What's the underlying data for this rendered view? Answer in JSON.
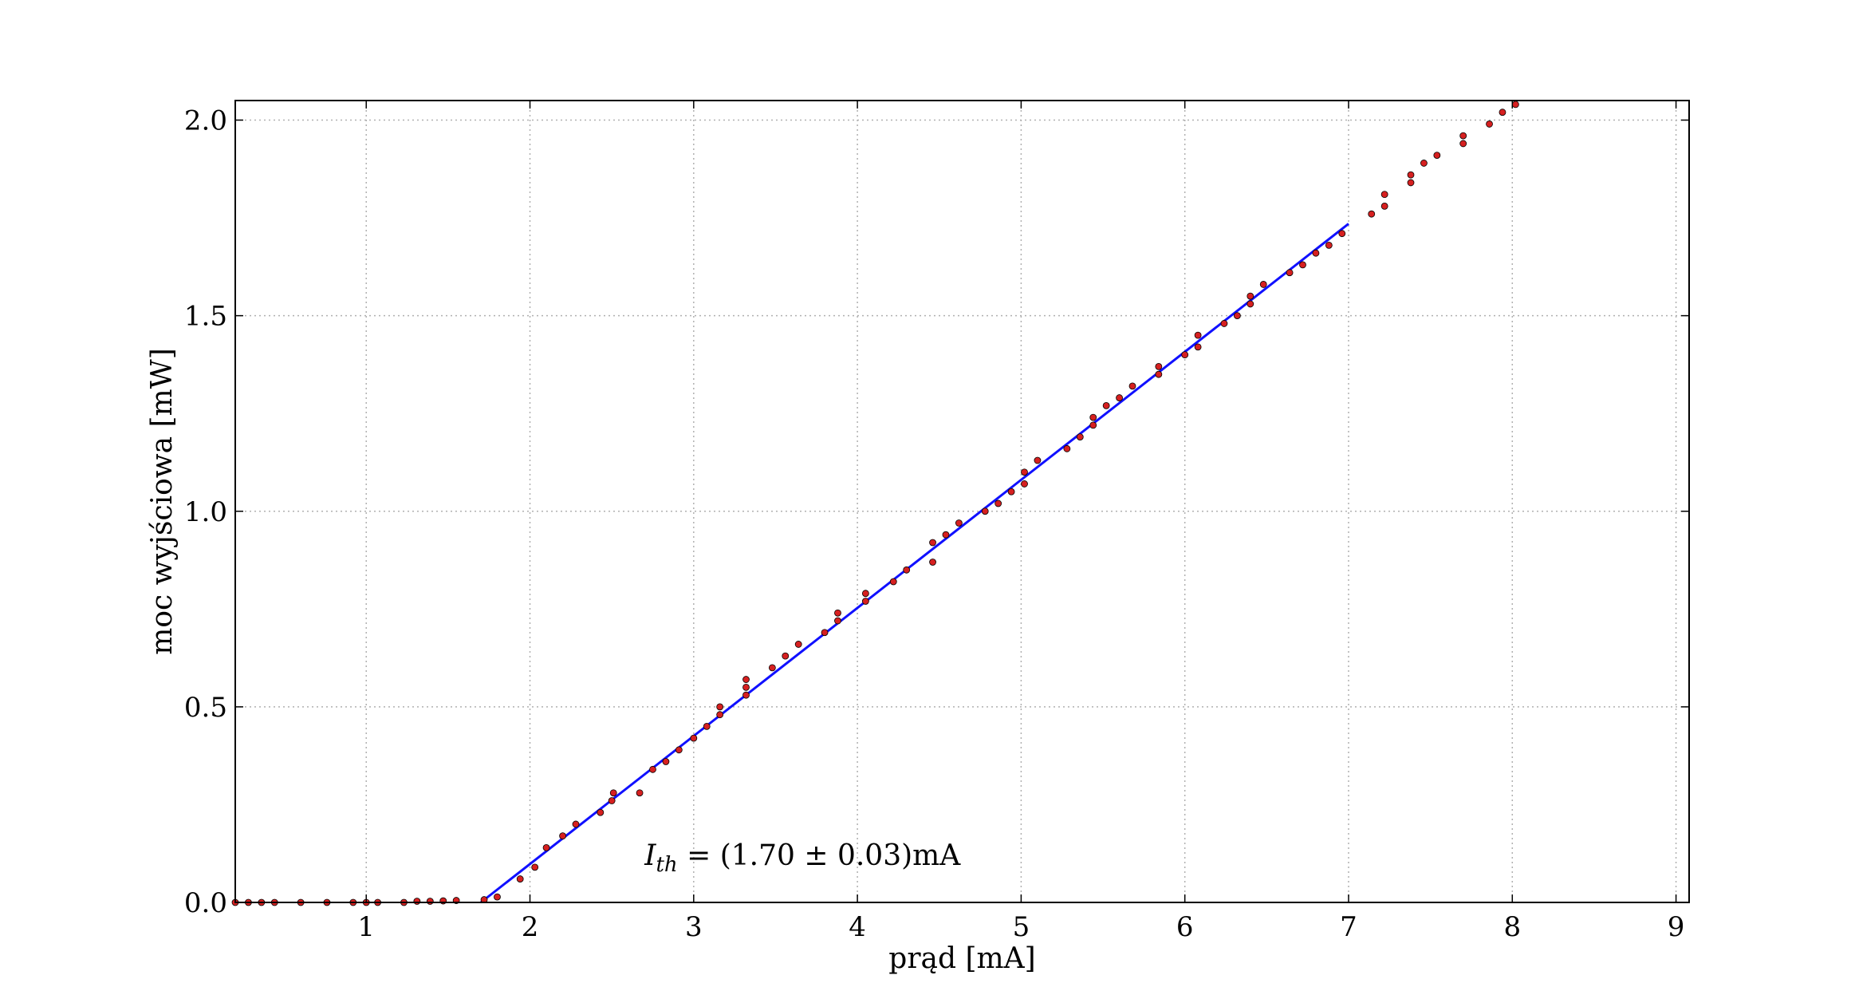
{
  "chart_data": {
    "type": "scatter",
    "xlabel": "prąd [mA]",
    "ylabel": "moc wyjściowa [mW]",
    "xlim": [
      0.2,
      9.08
    ],
    "ylim": [
      0.0,
      2.05
    ],
    "x_ticks": [
      1,
      2,
      3,
      4,
      5,
      6,
      7,
      8,
      9
    ],
    "x_tick_labels": [
      "1",
      "2",
      "3",
      "4",
      "5",
      "6",
      "7",
      "8",
      "9"
    ],
    "y_ticks": [
      0.0,
      0.5,
      1.0,
      1.5,
      2.0
    ],
    "y_tick_labels": [
      "0.0",
      "0.5",
      "1.0",
      "1.5",
      "2.0"
    ],
    "grid": true,
    "annotation": {
      "symbol": "I",
      "subscript": "th",
      "text": " = (1.70 ± 0.03)mA",
      "x": 2.7,
      "y": 0.12
    },
    "series": [
      {
        "kind": "points",
        "color": "#d62020",
        "x": [
          0.2,
          0.28,
          0.36,
          0.44,
          0.6,
          0.76,
          0.92,
          1.0,
          1.07,
          1.23,
          1.31,
          1.39,
          1.47,
          1.55,
          1.72,
          1.8,
          1.94,
          2.03,
          2.1,
          2.2,
          2.28,
          2.43,
          2.5,
          2.51,
          2.67,
          2.75,
          2.83,
          2.91,
          3.0,
          3.08,
          3.16,
          3.16,
          3.32,
          3.32,
          3.32,
          3.48,
          3.56,
          3.64,
          3.8,
          3.88,
          3.88,
          4.05,
          4.05,
          4.22,
          4.3,
          4.46,
          4.46,
          4.54,
          4.62,
          4.78,
          4.86,
          4.94,
          5.02,
          5.02,
          5.1,
          5.28,
          5.36,
          5.44,
          5.44,
          5.52,
          5.6,
          5.68,
          5.84,
          5.84,
          6.0,
          6.08,
          6.08,
          6.24,
          6.32,
          6.4,
          6.4,
          6.48,
          6.64,
          6.72,
          6.8,
          6.88,
          6.96,
          7.14,
          7.22,
          7.22,
          7.38,
          7.38,
          7.46,
          7.54,
          7.7,
          7.7,
          7.86,
          7.94,
          8.02
        ],
        "y": [
          0.0,
          0.0,
          0.0,
          0.0,
          0.0,
          0.0,
          0.0,
          0.0,
          0.0,
          0.0,
          0.003,
          0.003,
          0.004,
          0.005,
          0.007,
          0.014,
          0.06,
          0.09,
          0.14,
          0.17,
          0.2,
          0.23,
          0.26,
          0.28,
          0.28,
          0.34,
          0.36,
          0.39,
          0.42,
          0.45,
          0.48,
          0.5,
          0.53,
          0.55,
          0.57,
          0.6,
          0.63,
          0.66,
          0.69,
          0.72,
          0.74,
          0.77,
          0.79,
          0.82,
          0.85,
          0.87,
          0.92,
          0.94,
          0.97,
          1.0,
          1.02,
          1.05,
          1.07,
          1.1,
          1.13,
          1.16,
          1.19,
          1.22,
          1.24,
          1.27,
          1.29,
          1.32,
          1.35,
          1.37,
          1.4,
          1.42,
          1.45,
          1.48,
          1.5,
          1.53,
          1.55,
          1.58,
          1.61,
          1.63,
          1.66,
          1.68,
          1.71,
          1.76,
          1.78,
          1.81,
          1.84,
          1.86,
          1.89,
          1.91,
          1.94,
          1.96,
          1.99,
          2.02,
          2.04
        ]
      },
      {
        "kind": "line",
        "color": "#1010ff",
        "x": [
          1.7,
          7.0
        ],
        "y": [
          0.0,
          1.735
        ]
      }
    ]
  }
}
